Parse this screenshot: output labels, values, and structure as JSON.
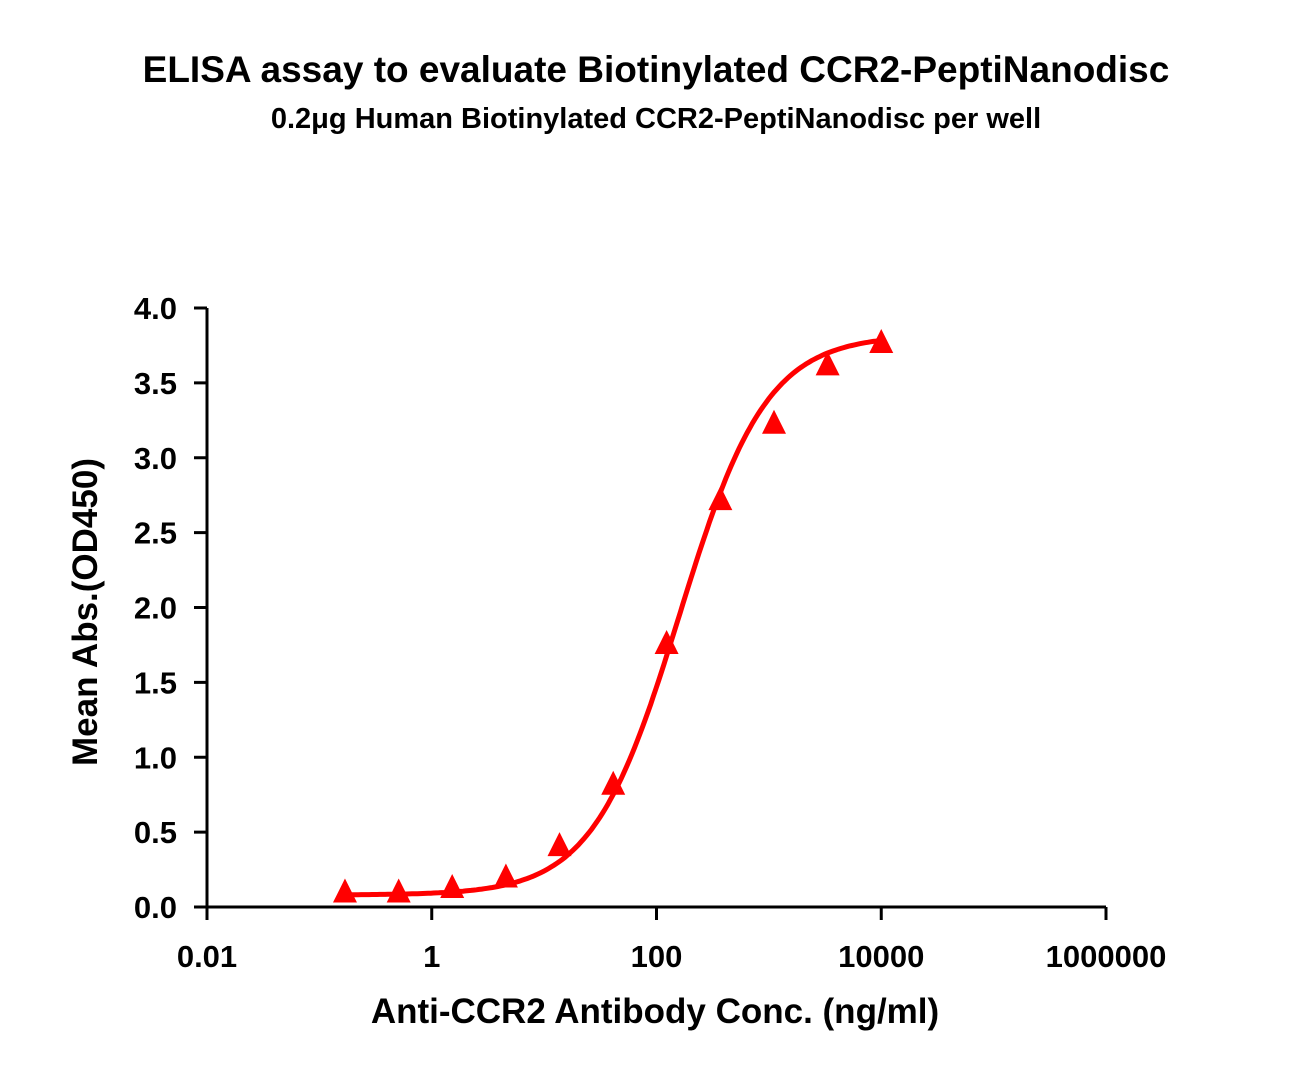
{
  "chart_data": {
    "type": "scatter",
    "title": "ELISA assay to evaluate Biotinylated CCR2-PeptiNanodisc",
    "subtitle": "0.2μg Human Biotinylated CCR2-PeptiNanodisc per well",
    "xlabel": "Anti-CCR2 Antibody Conc. (ng/ml)",
    "ylabel": "Mean Abs.(OD450)",
    "x_scale": "log",
    "xlim": [
      0.01,
      1000000
    ],
    "ylim": [
      0,
      4
    ],
    "x_ticks": [
      "0.01",
      "1",
      "100",
      "10000",
      "1000000"
    ],
    "y_ticks": [
      "0.0",
      "0.5",
      "1.0",
      "1.5",
      "2.0",
      "2.5",
      "3.0",
      "3.5",
      "4.0"
    ],
    "grid": false,
    "fit_curve": "sigmoidal",
    "marker": "triangle",
    "color": "#ff0000",
    "series": [
      {
        "x": [
          0.169,
          0.508,
          1.52,
          4.57,
          13.7,
          41.2,
          123,
          370,
          1111,
          3333,
          10000
        ],
        "y": [
          0.09,
          0.09,
          0.12,
          0.19,
          0.4,
          0.81,
          1.75,
          2.71,
          3.22,
          3.61,
          3.76
        ]
      }
    ]
  }
}
